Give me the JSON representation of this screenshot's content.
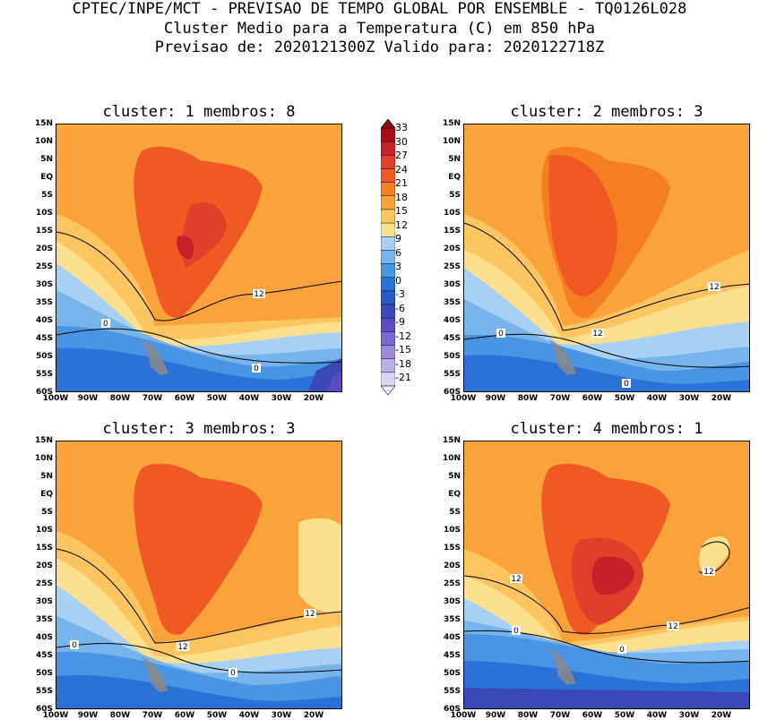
{
  "header": {
    "line1": "CPTEC/INPE/MCT - PREVISAO DE TEMPO GLOBAL POR ENSEMBLE - TQ0126L028",
    "line2": "Cluster Medio para a Temperatura (C) em 850 hPa",
    "line3": "Previsao de: 2020121300Z   Valido para: 2020122718Z"
  },
  "panels": [
    {
      "title": "cluster: 1   membros: 8",
      "contour_labels": [
        "12",
        "0",
        "0"
      ]
    },
    {
      "title": "cluster: 2   membros: 3",
      "contour_labels": [
        "12",
        "12",
        "0",
        "0"
      ]
    },
    {
      "title": "cluster: 3   membros: 3",
      "contour_labels": [
        "12",
        "12",
        "0",
        "0"
      ]
    },
    {
      "title": "cluster: 4   membros: 1",
      "contour_labels": [
        "12",
        "12",
        "12",
        "0",
        "0"
      ]
    }
  ],
  "lat_labels": [
    "15N",
    "10N",
    "5N",
    "EQ",
    "5S",
    "10S",
    "15S",
    "20S",
    "25S",
    "30S",
    "35S",
    "40S",
    "45S",
    "50S",
    "55S",
    "60S"
  ],
  "lon_labels": [
    "100W",
    "90W",
    "80W",
    "70W",
    "60W",
    "50W",
    "40W",
    "30W",
    "20W"
  ],
  "colorbar": {
    "labels": [
      "33",
      "30",
      "27",
      "24",
      "21",
      "18",
      "15",
      "12",
      "9",
      "6",
      "3",
      "0",
      "-3",
      "-6",
      "-9",
      "-12",
      "-15",
      "-18",
      "-21"
    ],
    "colors": [
      "#a50f15",
      "#c8202a",
      "#e0402a",
      "#ef5a24",
      "#f57e22",
      "#f9a33a",
      "#fcc560",
      "#fde08e",
      "#a8d0f2",
      "#78b4ec",
      "#4a94e4",
      "#2a72d8",
      "#2a58c4",
      "#3a48b8",
      "#5a4cc4",
      "#7a68d0",
      "#9a88dc",
      "#bcaee8",
      "#dcd4f4"
    ]
  }
}
